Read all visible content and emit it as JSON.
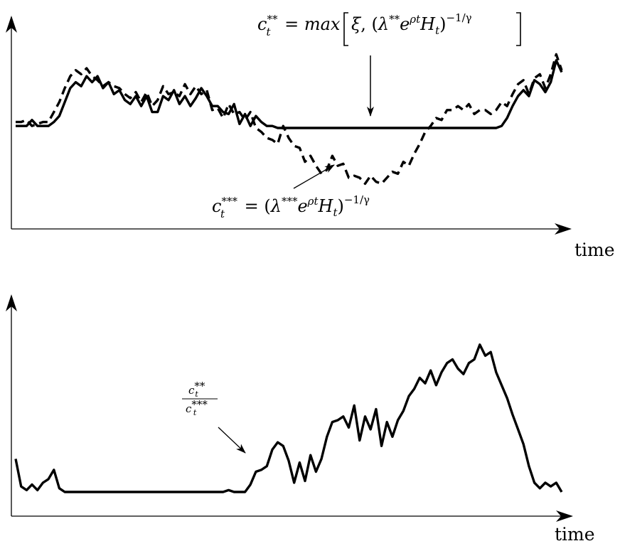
{
  "chart_data": [
    {
      "type": "line",
      "title": "",
      "xlabel": "time",
      "ylabel": "",
      "grid": false,
      "xlim": [
        0,
        100
      ],
      "ylim": [
        0,
        100
      ],
      "series": [
        {
          "name": "c_t**",
          "style": "solid",
          "color": "#000000",
          "x": [
            0,
            1,
            2,
            3,
            4,
            5,
            6,
            7,
            8,
            9,
            10,
            11,
            12,
            13,
            14,
            15,
            16,
            17,
            18,
            19,
            20,
            21,
            22,
            23,
            24,
            25,
            26,
            27,
            28,
            29,
            30,
            31,
            32,
            33,
            34,
            35,
            36,
            37,
            38,
            39,
            40,
            41,
            42,
            43,
            44,
            45,
            46,
            47,
            48,
            49,
            50,
            51,
            52,
            53,
            54,
            55,
            56,
            57,
            58,
            59,
            60,
            61,
            62,
            63,
            64,
            65,
            66,
            67,
            68,
            69,
            70,
            71,
            72,
            73,
            74,
            75,
            76,
            77,
            78,
            79,
            80,
            81,
            82,
            83,
            84,
            85,
            86,
            87,
            88,
            89,
            90,
            91,
            92,
            93,
            94,
            95,
            96,
            97,
            98,
            99,
            100
          ],
          "y": [
            51,
            51,
            51,
            54,
            51,
            51,
            51,
            53,
            56,
            63,
            70,
            73,
            71,
            76,
            73,
            76,
            70,
            73,
            67,
            69,
            64,
            62,
            66,
            61,
            66,
            58,
            58,
            66,
            64,
            69,
            62,
            66,
            61,
            65,
            70,
            66,
            61,
            61,
            58,
            57,
            62,
            52,
            57,
            51,
            56,
            53,
            51,
            51,
            50,
            50,
            50,
            50,
            50,
            50,
            50,
            50,
            50,
            50,
            50,
            50,
            50,
            50,
            50,
            50,
            50,
            50,
            50,
            50,
            50,
            50,
            50,
            50,
            50,
            50,
            50,
            50,
            50,
            50,
            50,
            50,
            50,
            50,
            50,
            50,
            50,
            50,
            50,
            50,
            50,
            51,
            55,
            61,
            66,
            69,
            66,
            74,
            72,
            68,
            73,
            84,
            78
          ]
        },
        {
          "name": "c_t***",
          "style": "dashed",
          "color": "#000000",
          "x": [
            0,
            1,
            2,
            3,
            4,
            5,
            6,
            7,
            8,
            9,
            10,
            11,
            12,
            13,
            14,
            15,
            16,
            17,
            18,
            19,
            20,
            21,
            22,
            23,
            24,
            25,
            26,
            27,
            28,
            29,
            30,
            31,
            32,
            33,
            34,
            35,
            36,
            37,
            38,
            39,
            40,
            41,
            42,
            43,
            44,
            45,
            46,
            47,
            48,
            49,
            50,
            51,
            52,
            53,
            54,
            55,
            56,
            57,
            58,
            59,
            60,
            61,
            62,
            63,
            64,
            65,
            66,
            67,
            68,
            69,
            70,
            71,
            72,
            73,
            74,
            75,
            76,
            77,
            78,
            79,
            80,
            81,
            82,
            83,
            84,
            85,
            86,
            87,
            88,
            89,
            90,
            91,
            92,
            93,
            94,
            95,
            96,
            97,
            98,
            99,
            100
          ],
          "y": [
            53,
            53,
            54,
            51,
            52,
            53,
            53,
            58,
            63,
            70,
            76,
            79,
            77,
            80,
            76,
            74,
            71,
            73,
            71,
            70,
            67,
            65,
            68,
            63,
            68,
            61,
            64,
            71,
            67,
            68,
            66,
            72,
            67,
            71,
            67,
            69,
            59,
            60,
            55,
            62,
            57,
            58,
            54,
            58,
            50,
            48,
            45,
            44,
            42,
            51,
            45,
            41,
            40,
            33,
            36,
            31,
            27,
            29,
            36,
            31,
            32,
            25,
            26,
            25,
            22,
            26,
            23,
            22,
            25,
            28,
            27,
            33,
            31,
            37,
            42,
            48,
            51,
            55,
            54,
            59,
            59,
            61,
            59,
            62,
            57,
            59,
            59,
            57,
            59,
            63,
            61,
            67,
            72,
            74,
            67,
            75,
            77,
            70,
            77,
            87,
            79
          ]
        }
      ],
      "annotations": [
        {
          "label": "c_t** = max[ξ, (λ** e^{ρt} H_t)^{-1/γ}]",
          "target_x": 65,
          "target_y": 50
        },
        {
          "label": "c_t*** = (λ*** e^{ρt} H_t)^{-1/γ}",
          "target_x": 59,
          "target_y": 31
        }
      ]
    },
    {
      "type": "line",
      "title": "",
      "xlabel": "time",
      "ylabel": "",
      "grid": false,
      "xlim": [
        0,
        100
      ],
      "ylim": [
        0,
        100
      ],
      "series": [
        {
          "name": "c_t** / c_t***",
          "style": "solid",
          "color": "#000000",
          "x": [
            0,
            1,
            2,
            3,
            4,
            5,
            6,
            7,
            8,
            9,
            10,
            11,
            12,
            13,
            14,
            15,
            16,
            17,
            18,
            19,
            20,
            21,
            22,
            23,
            24,
            25,
            26,
            27,
            28,
            29,
            30,
            31,
            32,
            33,
            34,
            35,
            36,
            37,
            38,
            39,
            40,
            41,
            42,
            43,
            44,
            45,
            46,
            47,
            48,
            49,
            50,
            51,
            52,
            53,
            54,
            55,
            56,
            57,
            58,
            59,
            60,
            61,
            62,
            63,
            64,
            65,
            66,
            67,
            68,
            69,
            70,
            71,
            72,
            73,
            74,
            75,
            76,
            77,
            78,
            79,
            80,
            81,
            82,
            83,
            84,
            85,
            86,
            87,
            88,
            89,
            90,
            91,
            92,
            93,
            94,
            95,
            96,
            97,
            98,
            99,
            100
          ],
          "y": [
            18,
            3,
            1,
            4,
            1,
            5,
            7,
            12,
            2,
            0,
            0,
            0,
            0,
            0,
            0,
            0,
            0,
            0,
            0,
            0,
            0,
            0,
            0,
            0,
            0,
            0,
            0,
            0,
            0,
            0,
            0,
            0,
            0,
            0,
            0,
            0,
            0,
            0,
            0,
            1,
            0,
            0,
            0,
            4,
            11,
            12,
            14,
            23,
            27,
            25,
            17,
            5,
            16,
            6,
            20,
            11,
            18,
            30,
            38,
            39,
            41,
            35,
            47,
            28,
            41,
            34,
            45,
            25,
            38,
            30,
            39,
            44,
            52,
            56,
            62,
            59,
            66,
            58,
            65,
            70,
            72,
            67,
            64,
            70,
            72,
            80,
            74,
            76,
            65,
            58,
            51,
            42,
            34,
            26,
            14,
            5,
            2,
            5,
            3,
            5,
            0
          ]
        }
      ],
      "annotations": [
        {
          "label": "c_t** / c_t***",
          "target_x": 44,
          "target_y": 11
        }
      ]
    }
  ]
}
